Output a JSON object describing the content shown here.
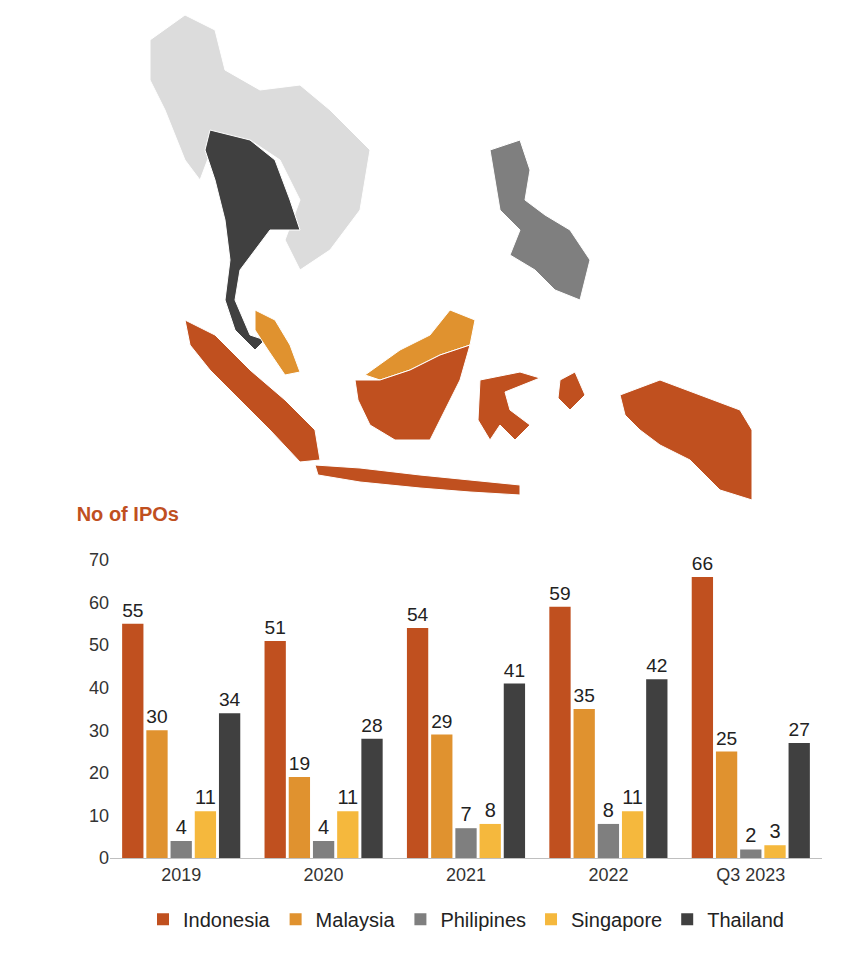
{
  "chart_data": {
    "type": "bar",
    "title": "No of IPOs",
    "categories": [
      "2019",
      "2020",
      "2021",
      "2022",
      "Q3 2023"
    ],
    "series": [
      {
        "name": "Indonesia",
        "color": "#c0501f",
        "values": [
          55,
          51,
          54,
          59,
          66
        ]
      },
      {
        "name": "Malaysia",
        "color": "#e0922f",
        "values": [
          30,
          19,
          29,
          35,
          25
        ]
      },
      {
        "name": "Philipines",
        "color": "#7f7f7f",
        "values": [
          4,
          4,
          7,
          8,
          2
        ]
      },
      {
        "name": "Singapore",
        "color": "#f5b83d",
        "values": [
          11,
          11,
          8,
          11,
          3
        ]
      },
      {
        "name": "Thailand",
        "color": "#404040",
        "values": [
          34,
          28,
          41,
          42,
          27
        ]
      }
    ],
    "ylim": [
      0,
      70
    ],
    "yticks": [
      0,
      10,
      20,
      30,
      40,
      50,
      60,
      70
    ],
    "grid": false,
    "data_labels": true,
    "legend": "bottom"
  }
}
